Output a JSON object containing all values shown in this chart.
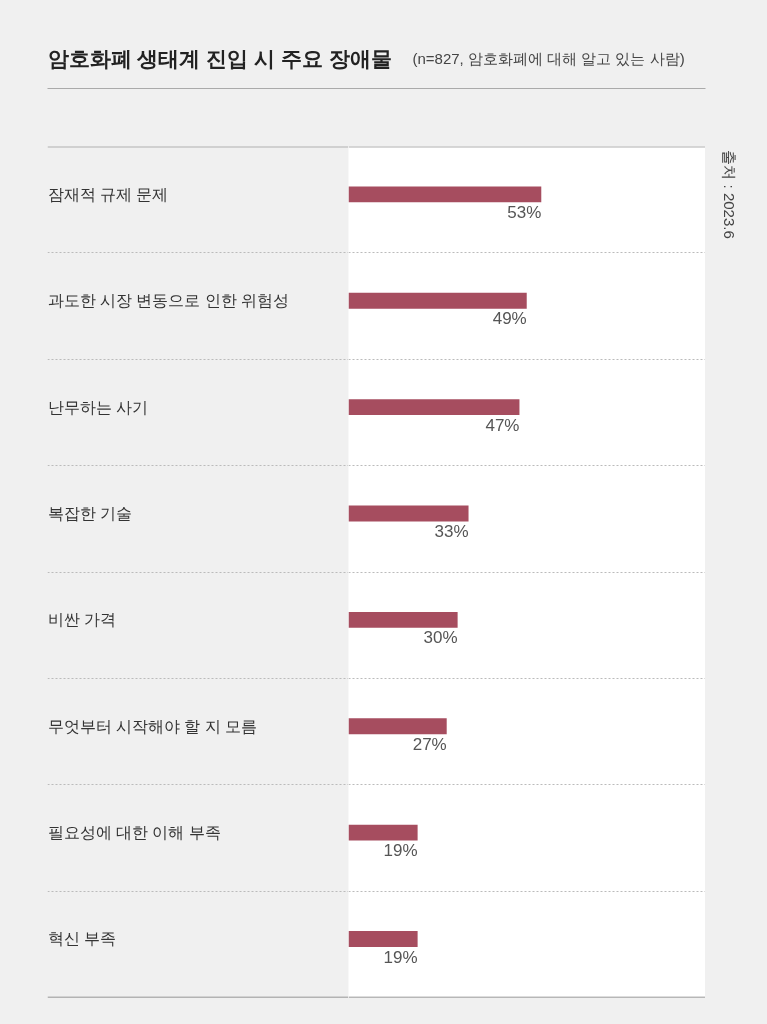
{
  "chart_data": {
    "type": "bar",
    "orientation": "horizontal",
    "title": "암호화폐 생태계 진입 시 주요 장애물",
    "subtitle": "(n=827, 암호화폐에 대해 알고 있는 사람)",
    "categories": [
      "잠재적 규제 문제",
      "과도한 시장 변동으로 인한 위험성",
      "난무하는 사기",
      "복잡한 기술",
      "비싼 가격",
      "무엇부터 시작해야 할 지 모름",
      "필요성에 대한 이해 부족",
      "혁신 부족"
    ],
    "values": [
      53,
      49,
      47,
      33,
      30,
      27,
      19,
      19
    ],
    "value_labels": [
      "53%",
      "49%",
      "47%",
      "33%",
      "30%",
      "27%",
      "19%",
      "19%"
    ],
    "color": "#a64d5f",
    "grid": "y",
    "tick_labels": "y",
    "annotations": [
      "출처 : 2023.6"
    ]
  }
}
